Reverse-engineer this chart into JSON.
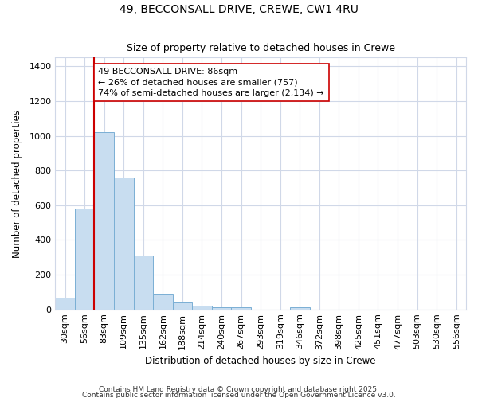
{
  "title1": "49, BECCONSALL DRIVE, CREWE, CW1 4RU",
  "title2": "Size of property relative to detached houses in Crewe",
  "xlabel": "Distribution of detached houses by size in Crewe",
  "ylabel": "Number of detached properties",
  "bar_labels": [
    "30sqm",
    "56sqm",
    "83sqm",
    "109sqm",
    "135sqm",
    "162sqm",
    "188sqm",
    "214sqm",
    "240sqm",
    "267sqm",
    "293sqm",
    "319sqm",
    "346sqm",
    "372sqm",
    "398sqm",
    "425sqm",
    "451sqm",
    "477sqm",
    "503sqm",
    "530sqm",
    "556sqm"
  ],
  "bar_values": [
    68,
    580,
    1020,
    760,
    310,
    90,
    38,
    22,
    14,
    10,
    0,
    0,
    14,
    0,
    0,
    0,
    0,
    0,
    0,
    0,
    0
  ],
  "bar_color": "#c8ddf0",
  "bar_edge_color": "#7aafd4",
  "bg_color": "#ffffff",
  "grid_color": "#d0d8e8",
  "vline_color": "#cc0000",
  "annotation_text": "49 BECCONSALL DRIVE: 86sqm\n← 26% of detached houses are smaller (757)\n74% of semi-detached houses are larger (2,134) →",
  "annotation_box_color": "#ffffff",
  "annotation_box_edge": "#cc0000",
  "ylim": [
    0,
    1450
  ],
  "yticks": [
    0,
    200,
    400,
    600,
    800,
    1000,
    1200,
    1400
  ],
  "footer1": "Contains HM Land Registry data © Crown copyright and database right 2025.",
  "footer2": "Contains public sector information licensed under the Open Government Licence v3.0."
}
